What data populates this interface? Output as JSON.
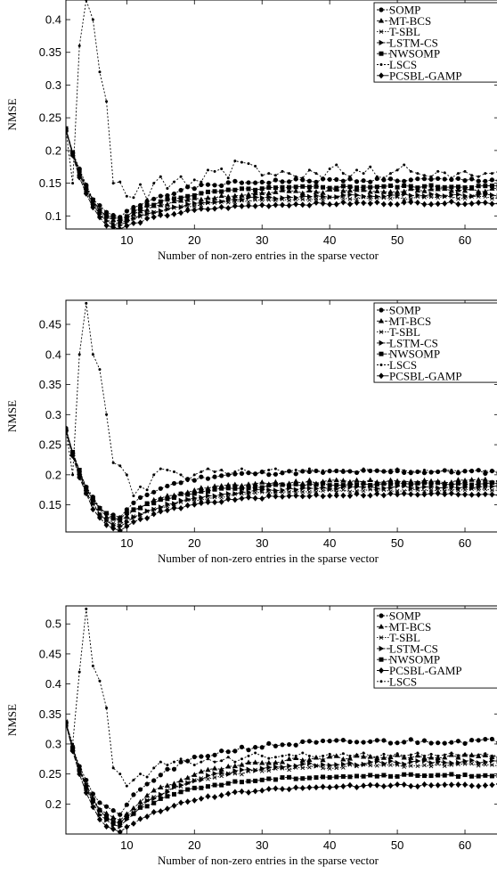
{
  "chart_data": [
    {
      "type": "line",
      "xlabel": "Number of non-zero entries in the sparse vector",
      "ylabel": "NMSE",
      "xlim": [
        1,
        65
      ],
      "ylim": [
        0.08,
        0.43
      ],
      "xticks": [
        10,
        20,
        30,
        40,
        50,
        60
      ],
      "yticks": [
        0.1,
        0.15,
        0.2,
        0.25,
        0.3,
        0.35,
        0.4
      ],
      "yticklabels": [
        "0.1",
        "0.15",
        "0.2",
        "0.25",
        "0.3",
        "0.35",
        "0.4"
      ],
      "legend_position": "top-right",
      "series": [
        {
          "name": "SOMP",
          "marker": "circle",
          "dash": "2,1.5",
          "start": 0.232,
          "min_x": 9,
          "min": 0.098,
          "end": 0.155,
          "tau": 7,
          "osc": 0.003,
          "seed": 1
        },
        {
          "name": "MT-BCS",
          "marker": "triangle-up",
          "dash": "3,1.5",
          "start": 0.232,
          "min_x": 9,
          "min": 0.092,
          "end": 0.14,
          "tau": 9,
          "osc": 0.003,
          "seed": 2
        },
        {
          "name": "T-SBL",
          "marker": "x",
          "dash": "1.5,1.5",
          "start": 0.232,
          "min_x": 9,
          "min": 0.088,
          "end": 0.128,
          "tau": 9,
          "osc": 0.002,
          "seed": 3
        },
        {
          "name": "LSTM-CS",
          "marker": "triangle-right",
          "dash": "4,1.5",
          "start": 0.232,
          "min_x": 9,
          "min": 0.086,
          "end": 0.132,
          "tau": 9,
          "osc": 0.002,
          "seed": 4
        },
        {
          "name": "NWSOMP",
          "marker": "square",
          "dash": "5,1.5",
          "start": 0.232,
          "min_x": 9,
          "min": 0.095,
          "end": 0.145,
          "tau": 8,
          "osc": 0.002,
          "seed": 5
        },
        {
          "name": "LSCS",
          "marker": "dot",
          "dash": "2,2",
          "values": [
            0.232,
            0.15,
            0.36,
            0.43,
            0.4,
            0.32,
            0.275,
            0.15,
            0.152,
            0.13,
            0.128,
            0.148,
            0.125,
            0.15,
            0.16,
            0.142,
            0.152,
            0.16,
            0.145,
            0.155,
            0.152,
            0.17,
            0.168,
            0.172,
            0.158,
            0.184,
            0.182,
            0.18,
            0.176,
            0.162,
            0.165,
            0.162,
            0.168,
            0.165,
            0.16,
            0.158,
            0.17,
            0.165,
            0.158,
            0.172,
            0.178,
            0.165,
            0.16,
            0.17,
            0.165,
            0.175,
            0.16,
            0.158,
            0.165,
            0.17,
            0.178,
            0.168,
            0.165,
            0.162,
            0.16,
            0.168,
            0.166,
            0.158,
            0.165,
            0.168,
            0.162,
            0.16,
            0.165,
            0.165,
            0.168
          ]
        },
        {
          "name": "PCSBL-GAMP",
          "marker": "diamond",
          "dash": "6,1.5",
          "start": 0.232,
          "min_x": 9,
          "min": 0.08,
          "end": 0.12,
          "tau": 9,
          "osc": 0.002,
          "seed": 6
        }
      ]
    },
    {
      "type": "line",
      "xlabel": "Number of non-zero entries in the sparse vector",
      "ylabel": "NMSE",
      "xlim": [
        1,
        65
      ],
      "ylim": [
        0.105,
        0.49
      ],
      "xticks": [
        10,
        20,
        30,
        40,
        50,
        60
      ],
      "yticks": [
        0.15,
        0.2,
        0.25,
        0.3,
        0.35,
        0.4,
        0.45
      ],
      "yticklabels": [
        "0.15",
        "0.2",
        "0.25",
        "0.3",
        "0.35",
        "0.4",
        "0.45"
      ],
      "legend_position": "top-right",
      "series": [
        {
          "name": "SOMP",
          "marker": "circle",
          "dash": "2,1.5",
          "start": 0.275,
          "min_x": 9,
          "min": 0.13,
          "end": 0.205,
          "tau": 6,
          "osc": 0.003,
          "seed": 11
        },
        {
          "name": "MT-BCS",
          "marker": "triangle-up",
          "dash": "3,1.5",
          "start": 0.275,
          "min_x": 9,
          "min": 0.125,
          "end": 0.19,
          "tau": 8,
          "osc": 0.003,
          "seed": 12
        },
        {
          "name": "T-SBL",
          "marker": "x",
          "dash": "1.5,1.5",
          "start": 0.275,
          "min_x": 9,
          "min": 0.118,
          "end": 0.175,
          "tau": 9,
          "osc": 0.002,
          "seed": 13
        },
        {
          "name": "LSTM-CS",
          "marker": "triangle-right",
          "dash": "4,1.5",
          "start": 0.275,
          "min_x": 9,
          "min": 0.115,
          "end": 0.18,
          "tau": 9,
          "osc": 0.002,
          "seed": 14
        },
        {
          "name": "NWSOMP",
          "marker": "square",
          "dash": "5,1.5",
          "start": 0.275,
          "min_x": 9,
          "min": 0.128,
          "end": 0.185,
          "tau": 8,
          "osc": 0.002,
          "seed": 15
        },
        {
          "name": "LSCS",
          "marker": "dot",
          "dash": "2,2",
          "values": [
            0.275,
            0.2,
            0.4,
            0.485,
            0.4,
            0.375,
            0.3,
            0.22,
            0.215,
            0.2,
            0.165,
            0.18,
            0.175,
            0.2,
            0.21,
            0.208,
            0.205,
            0.2,
            0.19,
            0.2,
            0.205,
            0.21,
            0.205,
            0.208,
            0.2,
            0.205,
            0.21,
            0.205,
            0.2,
            0.206,
            0.208,
            0.21,
            0.205,
            0.206,
            0.208,
            0.205,
            0.21,
            0.205,
            0.207,
            0.206,
            0.205,
            0.208,
            0.206,
            0.205,
            0.21,
            0.208,
            0.206,
            0.205,
            0.208,
            0.21,
            0.207,
            0.206,
            0.205,
            0.208,
            0.206,
            0.205,
            0.207,
            0.208,
            0.206,
            0.205,
            0.208,
            0.207,
            0.206,
            0.205,
            0.207
          ]
        },
        {
          "name": "PCSBL-GAMP",
          "marker": "diamond",
          "dash": "6,1.5",
          "start": 0.275,
          "min_x": 9,
          "min": 0.108,
          "end": 0.168,
          "tau": 9,
          "osc": 0.002,
          "seed": 16
        }
      ]
    },
    {
      "type": "line",
      "xlabel": "Number of non-zero entries in the sparse vector",
      "ylabel": "NMSE",
      "xlim": [
        1,
        65
      ],
      "ylim": [
        0.15,
        0.53
      ],
      "xticks": [
        10,
        20,
        30,
        40,
        50,
        60
      ],
      "yticks": [
        0.2,
        0.25,
        0.3,
        0.35,
        0.4,
        0.45,
        0.5
      ],
      "yticklabels": [
        "0.2",
        "0.25",
        "0.3",
        "0.35",
        "0.4",
        "0.45",
        "0.5"
      ],
      "legend_position": "top-right",
      "series": [
        {
          "name": "SOMP",
          "marker": "circle",
          "dash": "2,1.5",
          "start": 0.335,
          "min_x": 9,
          "min": 0.185,
          "end": 0.305,
          "tau": 8,
          "osc": 0.004,
          "seed": 21
        },
        {
          "name": "MT-BCS",
          "marker": "triangle-up",
          "dash": "3,1.5",
          "start": 0.335,
          "min_x": 9,
          "min": 0.175,
          "end": 0.28,
          "tau": 9,
          "osc": 0.003,
          "seed": 22
        },
        {
          "name": "T-SBL",
          "marker": "x",
          "dash": "1.5,1.5",
          "start": 0.335,
          "min_x": 9,
          "min": 0.17,
          "end": 0.265,
          "tau": 9,
          "osc": 0.003,
          "seed": 23
        },
        {
          "name": "LSTM-CS",
          "marker": "triangle-right",
          "dash": "4,1.5",
          "start": 0.335,
          "min_x": 9,
          "min": 0.165,
          "end": 0.27,
          "tau": 9,
          "osc": 0.003,
          "seed": 24
        },
        {
          "name": "NWSOMP",
          "marker": "square",
          "dash": "5,1.5",
          "start": 0.335,
          "min_x": 9,
          "min": 0.17,
          "end": 0.248,
          "tau": 9,
          "osc": 0.002,
          "seed": 25
        },
        {
          "name": "PCSBL-GAMP",
          "marker": "diamond",
          "dash": "6,1.5",
          "start": 0.335,
          "min_x": 9,
          "min": 0.155,
          "end": 0.232,
          "tau": 10,
          "osc": 0.002,
          "seed": 26
        },
        {
          "name": "LSCS",
          "marker": "dot",
          "dash": "2,2",
          "values": [
            0.335,
            0.3,
            0.42,
            0.525,
            0.43,
            0.405,
            0.36,
            0.26,
            0.25,
            0.23,
            0.24,
            0.25,
            0.245,
            0.26,
            0.27,
            0.265,
            0.27,
            0.275,
            0.27,
            0.265,
            0.27,
            0.275,
            0.27,
            0.272,
            0.278,
            0.27,
            0.275,
            0.28,
            0.285,
            0.28,
            0.276,
            0.278,
            0.28,
            0.282,
            0.28,
            0.285,
            0.28,
            0.278,
            0.28,
            0.283,
            0.28,
            0.284,
            0.28,
            0.282,
            0.285,
            0.28,
            0.278,
            0.283,
            0.28,
            0.284,
            0.28,
            0.282,
            0.285,
            0.28,
            0.283,
            0.28,
            0.282,
            0.285,
            0.281,
            0.283,
            0.28,
            0.282,
            0.284,
            0.28,
            0.282
          ]
        }
      ]
    }
  ]
}
